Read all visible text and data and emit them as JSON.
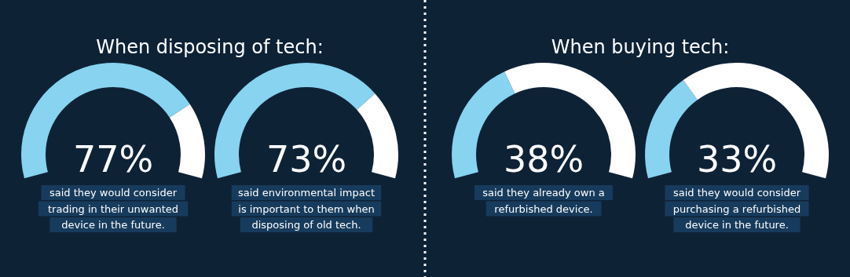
{
  "chart_data": [
    {
      "type": "donut",
      "title": "When disposing of tech:",
      "categories": [
        null,
        null
      ],
      "values": [
        77,
        23
      ],
      "colors": [
        "#87d3f0",
        "#ffffff"
      ],
      "annotations": [
        "77%",
        "said they would consider\ntrading in their unwanted\ndevice in the future."
      ]
    },
    {
      "type": "donut",
      "categories": [
        null,
        null
      ],
      "values": [
        73,
        27
      ],
      "colors": [
        "#87d3f0",
        "#ffffff"
      ],
      "annotations": [
        "73%",
        "said environmental impact\nis important to them when\ndisposing of old tech."
      ]
    },
    {
      "type": "donut",
      "title": "When buying tech:",
      "categories": [
        null,
        null
      ],
      "values": [
        38,
        62
      ],
      "colors": [
        "#87d3f0",
        "#ffffff"
      ],
      "annotations": [
        "38%",
        "said they already own a\nrefurbished device."
      ]
    },
    {
      "type": "donut",
      "categories": [
        null,
        null
      ],
      "values": [
        33,
        67
      ],
      "colors": [
        "#87d3f0",
        "#ffffff"
      ],
      "annotations": [
        "33%",
        "said they would consider\npurchasing a refurbished\ndevice in the future."
      ]
    }
  ]
}
